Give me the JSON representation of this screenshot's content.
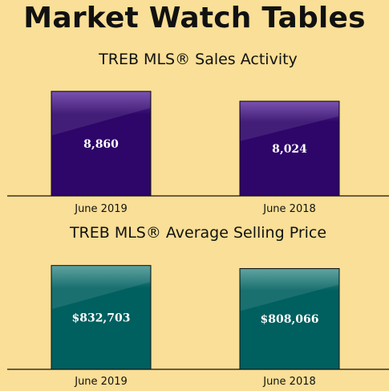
{
  "page": {
    "title": "Market Watch Tables",
    "background": "#F9DF97"
  },
  "chart_data": [
    {
      "type": "bar",
      "title": "TREB MLS® Sales Activity",
      "categories": [
        "June 2019",
        "June 2018"
      ],
      "values": [
        8860,
        8024
      ],
      "value_labels": [
        "8,860",
        "8,024"
      ],
      "xlabel": "",
      "ylabel": "",
      "ylim": [
        0,
        10000
      ],
      "grid": false,
      "color": "#2E0569",
      "color_light": "#6A3FA6"
    },
    {
      "type": "bar",
      "title": "TREB MLS® Average Selling Price",
      "categories": [
        "June 2019",
        "June 2018"
      ],
      "values": [
        832703,
        808066
      ],
      "value_labels": [
        "$832,703",
        "$808,066"
      ],
      "xlabel": "",
      "ylabel": "",
      "ylim": [
        0,
        940000
      ],
      "grid": false,
      "color": "#005F5F",
      "color_light": "#4E9A97"
    }
  ]
}
